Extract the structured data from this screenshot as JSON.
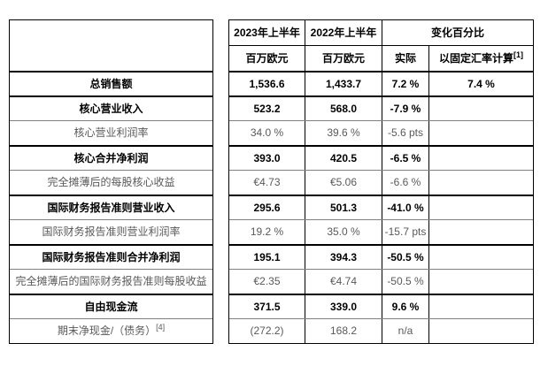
{
  "colors": {
    "border": "#000000",
    "thin_divider": "#808080",
    "key_metric_text": "#000000",
    "secondary_metric_text": "#595959",
    "background": "#ffffff"
  },
  "table": {
    "header": {
      "col_2023": "2023年上半年",
      "col_2022": "2022年上半年",
      "col_change": "变化百分比",
      "unit_2023": "百万欧元",
      "unit_2022": "百万欧元",
      "col_actual": "实际",
      "col_cer": "以固定汇率计算",
      "col_cer_sup": "[1]"
    },
    "rows": [
      {
        "label": "总销售额",
        "v2023": "1,536.6",
        "v2022": "1,433.7",
        "actual": "7.2 %",
        "cer": "7.4 %",
        "emphasis": true
      },
      {
        "label": "核心营业收入",
        "v2023": "523.2",
        "v2022": "568.0",
        "actual": "-7.9 %",
        "cer": "",
        "emphasis": true
      },
      {
        "label": "核心营业利润率",
        "v2023": "34.0 %",
        "v2022": "39.6 %",
        "actual": "-5.6 pts",
        "cer": "",
        "emphasis": false
      },
      {
        "label": "核心合并净利润",
        "v2023": "393.0",
        "v2022": "420.5",
        "actual": "-6.5 %",
        "cer": "",
        "emphasis": true
      },
      {
        "label": "完全摊薄后的每股核心收益",
        "v2023": "€4.73",
        "v2022": "€5.06",
        "actual": "-6.6 %",
        "cer": "",
        "emphasis": false
      },
      {
        "label": "国际财务报告准则营业收入",
        "v2023": "295.6",
        "v2022": "501.3",
        "actual": "-41.0 %",
        "cer": "",
        "emphasis": true
      },
      {
        "label": "国际财务报告准则营业利润率",
        "v2023": "19.2 %",
        "v2022": "35.0 %",
        "actual": "-15.7 pts",
        "cer": "",
        "emphasis": false
      },
      {
        "label": "国际财务报告准则合并净利润",
        "v2023": "195.1",
        "v2022": "394.3",
        "actual": "-50.5 %",
        "cer": "",
        "emphasis": true
      },
      {
        "label": "完全摊薄后的国际财务报告准则每股收益",
        "v2023": "€2.35",
        "v2022": "€4.74",
        "actual": "-50.5 %",
        "cer": "",
        "emphasis": false
      },
      {
        "label": "自由现金流",
        "v2023": "371.5",
        "v2022": "339.0",
        "actual": "9.6 %",
        "cer": "",
        "emphasis": true
      },
      {
        "label": "期末净现金/（债务）",
        "label_sup": "[4]",
        "v2023": "(272.2)",
        "v2022": "168.2",
        "actual": "n/a",
        "cer": "",
        "emphasis": false
      }
    ]
  }
}
